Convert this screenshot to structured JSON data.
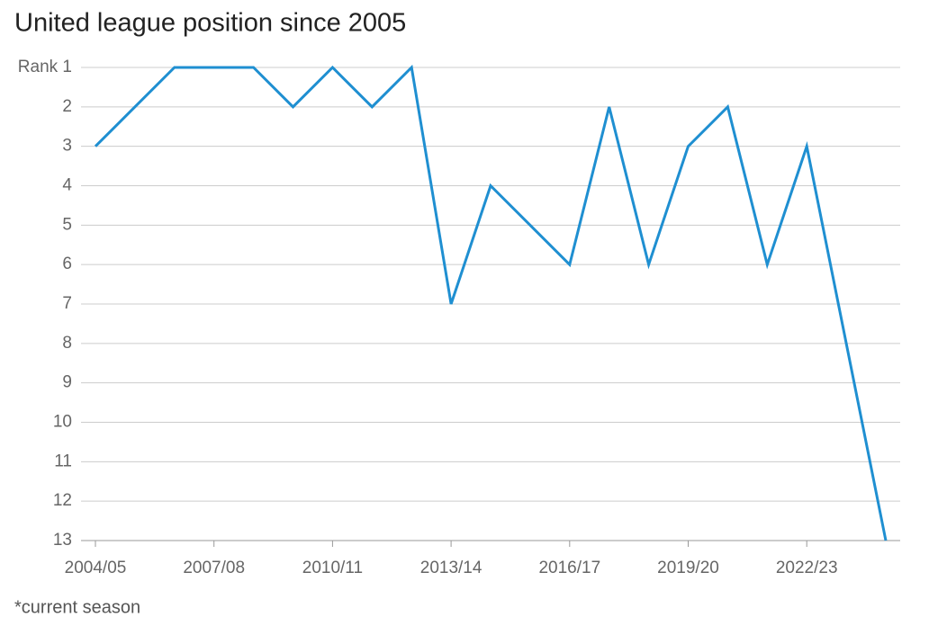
{
  "chart_data": {
    "type": "line",
    "title": "United league position since 2005",
    "categories": [
      "2004/05",
      null,
      null,
      "2007/08",
      null,
      null,
      "2010/11",
      null,
      null,
      "2013/14",
      null,
      null,
      "2016/17",
      null,
      null,
      "2019/20",
      null,
      null,
      "2022/23",
      null,
      null
    ],
    "series": [
      {
        "name": "United",
        "color": "#1f8fd1",
        "values": [
          3,
          2,
          1,
          1,
          1,
          2,
          1,
          2,
          1,
          7,
          4,
          5,
          6,
          2,
          6,
          3,
          2,
          6,
          3,
          8,
          13
        ]
      }
    ],
    "ylim": [
      1,
      13
    ],
    "y_inverted": true,
    "yticks": [
      {
        "value": 1,
        "label": "Rank 1"
      },
      2,
      3,
      4,
      5,
      6,
      7,
      8,
      9,
      10,
      11,
      12,
      13
    ],
    "grid": true,
    "note": "*current season"
  }
}
